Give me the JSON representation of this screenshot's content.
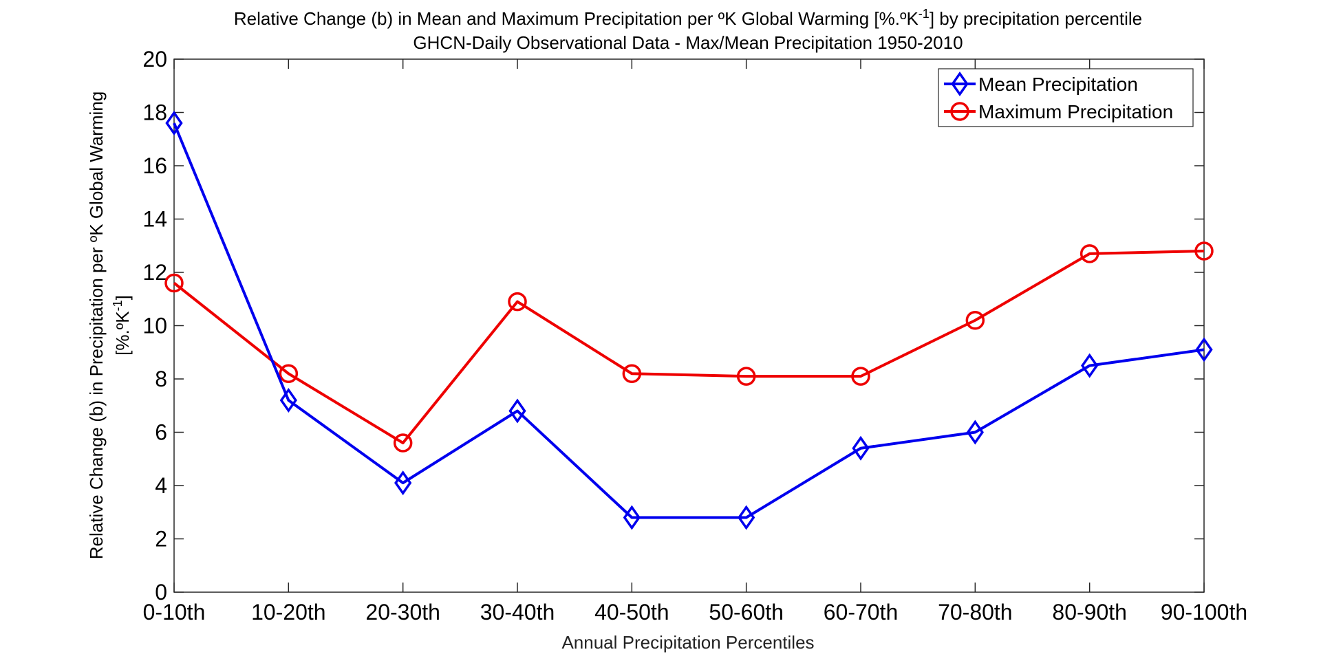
{
  "chart_data": {
    "type": "line",
    "title": "Relative Change (b) in Mean and Maximum Precipitation per ºK Global Warming [%.ºK-1] by precipitation percentile",
    "title_parts": {
      "pre": "Relative Change (b) in Mean and Maximum Precipitation per ºK Global Warming [%.ºK",
      "sup": "-1",
      "post": "] by precipitation percentile"
    },
    "subtitle": "GHCN-Daily Observational Data - Max/Mean Precipitation 1950-2010",
    "xlabel": "Annual Precipitation Percentiles",
    "ylabel": "Relative Change (b) in Precipitation per ºK Global Warming [%.ºK-1]",
    "ylabel_parts": {
      "line1": "Relative Change (b) in Precipitation per ºK Global Warming",
      "line2_pre": "[%.ºK",
      "line2_sup": "-1",
      "line2_post": "]"
    },
    "categories": [
      "0-10th",
      "10-20th",
      "20-30th",
      "30-40th",
      "40-50th",
      "50-60th",
      "60-70th",
      "70-80th",
      "80-90th",
      "90-100th"
    ],
    "ylim": [
      0,
      20
    ],
    "yticks": [
      0,
      2,
      4,
      6,
      8,
      10,
      12,
      14,
      16,
      18,
      20
    ],
    "grid": false,
    "legend_position": "top-right",
    "series": [
      {
        "name": "Mean Precipitation",
        "color": "#0000ee",
        "marker": "diamond",
        "values": [
          17.6,
          7.2,
          4.1,
          6.8,
          2.8,
          2.8,
          5.4,
          6.0,
          8.5,
          9.1
        ]
      },
      {
        "name": "Maximum Precipitation",
        "color": "#ee0000",
        "marker": "circle",
        "values": [
          11.6,
          8.2,
          5.6,
          10.9,
          8.2,
          8.1,
          8.1,
          10.2,
          12.7,
          12.8
        ]
      }
    ]
  }
}
